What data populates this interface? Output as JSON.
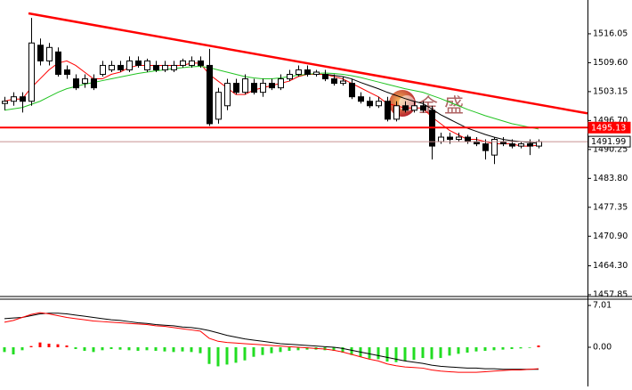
{
  "chart_data": {
    "type": "candlestick",
    "ylim": [
      1457.85,
      1521.6
    ],
    "yticks": [
      1516.05,
      {
        "value": 1509.6,
        "label": "1509.60"
      },
      1503.15,
      {
        "value": 1496.7,
        "label": "1496.70"
      },
      1490.25,
      {
        "value": 1483.8,
        "label": "1483.80"
      },
      1477.35,
      {
        "value": 1470.9,
        "label": "1470.90"
      },
      {
        "value": 1464.3,
        "label": "1464.30"
      },
      1457.85
    ],
    "candle_color": "#000000",
    "ohlc": [
      [
        1500.5,
        1502,
        1499,
        1501
      ],
      [
        1501,
        1503,
        1500,
        1502
      ],
      [
        1502,
        1503,
        1498.5,
        1501
      ],
      [
        1501,
        1519.6,
        1500,
        1514
      ],
      [
        1513.5,
        1515,
        1509,
        1510
      ],
      [
        1510,
        1514,
        1509,
        1513
      ],
      [
        1512,
        1513,
        1506.5,
        1507
      ],
      [
        1508,
        1509,
        1506,
        1507
      ],
      [
        1506,
        1507,
        1503.5,
        1504
      ],
      [
        1505,
        1507,
        1504,
        1506
      ],
      [
        1506,
        1507,
        1503.5,
        1504
      ],
      [
        1507,
        1510,
        1506.5,
        1509
      ],
      [
        1508,
        1510,
        1507.5,
        1509
      ],
      [
        1509,
        1510,
        1507.5,
        1508
      ],
      [
        1508,
        1511,
        1507.5,
        1510
      ],
      [
        1510,
        1511,
        1508.5,
        1509
      ],
      [
        1508,
        1510.5,
        1507.5,
        1510
      ],
      [
        1509,
        1510,
        1507.5,
        1508
      ],
      [
        1508,
        1510,
        1507.5,
        1509
      ],
      [
        1508,
        1510,
        1507.5,
        1509
      ],
      [
        1509,
        1510.5,
        1508.5,
        1510
      ],
      [
        1509,
        1511,
        1508.5,
        1510
      ],
      [
        1510,
        1511,
        1508.5,
        1509
      ],
      [
        1509,
        1512.7,
        1495.5,
        1496
      ],
      [
        1497,
        1504,
        1496,
        1503
      ],
      [
        1500,
        1506,
        1499,
        1505
      ],
      [
        1505,
        1506,
        1502.5,
        1503
      ],
      [
        1503,
        1507,
        1502.5,
        1506
      ],
      [
        1505,
        1506,
        1502.5,
        1503
      ],
      [
        1503,
        1506,
        1502,
        1505
      ],
      [
        1505,
        1506,
        1503.5,
        1504
      ],
      [
        1504,
        1507,
        1503.5,
        1506
      ],
      [
        1506,
        1508,
        1505.5,
        1507
      ],
      [
        1507,
        1509,
        1506.5,
        1508
      ],
      [
        1508,
        1509,
        1506.5,
        1507
      ],
      [
        1507,
        1508,
        1506.5,
        1507.5
      ],
      [
        1507,
        1508,
        1505.5,
        1506
      ],
      [
        1506,
        1507,
        1504.5,
        1505
      ],
      [
        1505,
        1506.5,
        1504.5,
        1505.5
      ],
      [
        1505,
        1506,
        1501.5,
        1502
      ],
      [
        1502,
        1503,
        1500.5,
        1501
      ],
      [
        1501,
        1502,
        1499.5,
        1500
      ],
      [
        1500,
        1502,
        1499.5,
        1501
      ],
      [
        1501,
        1502,
        1496.5,
        1497
      ],
      [
        1497,
        1501,
        1496.5,
        1500
      ],
      [
        1500,
        1501,
        1498.5,
        1499
      ],
      [
        1499,
        1501,
        1498.5,
        1500
      ],
      [
        1500,
        1501,
        1498.5,
        1499
      ],
      [
        1499,
        1500,
        1488,
        1491
      ],
      [
        1492,
        1494,
        1491.5,
        1493
      ],
      [
        1493,
        1494,
        1491.5,
        1492.5
      ],
      [
        1492.5,
        1494,
        1492,
        1493
      ],
      [
        1493,
        1493.5,
        1491.5,
        1492
      ],
      [
        1492,
        1493,
        1491,
        1491.5
      ],
      [
        1491.5,
        1492.5,
        1488,
        1490
      ],
      [
        1489,
        1493,
        1487,
        1492.5
      ],
      [
        1492,
        1493,
        1491,
        1491.5
      ],
      [
        1491.5,
        1492.5,
        1490.5,
        1491
      ],
      [
        1491,
        1492,
        1490.5,
        1491.5
      ],
      [
        1491.5,
        1492.5,
        1489,
        1491
      ],
      [
        1491,
        1492.5,
        1490.5,
        1491.99
      ]
    ],
    "series": [
      {
        "color": "#ff0000",
        "values": [
          1501,
          1501.5,
          1501.5,
          1504,
          1506,
          1508,
          1509.5,
          1510,
          1509,
          1507.5,
          1506,
          1506,
          1507,
          1507.5,
          1508.5,
          1509,
          1509,
          1509,
          1509,
          1509,
          1509,
          1509.5,
          1509.5,
          1507,
          1505.5,
          1504,
          1502.5,
          1502.5,
          1503.5,
          1504,
          1504.5,
          1505,
          1505.5,
          1506.5,
          1507,
          1507,
          1507,
          1506.5,
          1506,
          1505,
          1504,
          1503,
          1502,
          1500.5,
          1500,
          1499.5,
          1499.5,
          1499.5,
          1497.5,
          1496,
          1494.5,
          1493.5,
          1492.5,
          1492.5,
          1492,
          1491.5,
          1491.5,
          1491.5,
          1491,
          1491,
          1491.2
        ]
      },
      {
        "color": "#22c422",
        "values": [
          1499,
          1499.3,
          1499.6,
          1500.3,
          1501,
          1502,
          1503,
          1503.8,
          1504.3,
          1504.8,
          1505.2,
          1505.6,
          1506,
          1506.4,
          1506.8,
          1507.2,
          1507.5,
          1507.8,
          1508,
          1508.3,
          1508.5,
          1508.7,
          1508.8,
          1508.5,
          1508,
          1507.5,
          1507,
          1506.5,
          1506.2,
          1506,
          1506,
          1506.2,
          1506.5,
          1506.8,
          1507,
          1507.2,
          1507.3,
          1507.2,
          1507,
          1506.7,
          1506.3,
          1505.8,
          1505.3,
          1504.8,
          1504.3,
          1503.8,
          1503.4,
          1503,
          1502.3,
          1501.6,
          1500.8,
          1500,
          1499.2,
          1498.5,
          1497.8,
          1497.2,
          1496.6,
          1496,
          1495.6,
          1495.2,
          1494.8
        ]
      },
      {
        "color": "#000000",
        "values": [
          null,
          null,
          null,
          null,
          null,
          null,
          null,
          null,
          null,
          null,
          null,
          null,
          null,
          null,
          null,
          null,
          null,
          null,
          null,
          null,
          null,
          null,
          null,
          null,
          null,
          null,
          null,
          null,
          null,
          null,
          null,
          null,
          null,
          null,
          null,
          null,
          1507,
          1506.8,
          1506.5,
          1506,
          1505.2,
          1504.5,
          1503.8,
          1503,
          1502.3,
          1501.6,
          1501,
          1500.5,
          1499.3,
          1498,
          1497,
          1496,
          1495,
          1494.3,
          1493.6,
          1493,
          1492.5,
          1492.2,
          1492,
          1491.8,
          1491.6
        ]
      }
    ],
    "trendline": {
      "color": "#ff0000",
      "start": [
        2.7,
        1520.6
      ],
      "end": [
        65.5,
        1498.3
      ]
    },
    "levels": [
      {
        "value": 1495.13,
        "color": "#ff0000"
      },
      {
        "value": 1491.99,
        "color": "#c89090"
      }
    ],
    "watermark": "金 盛",
    "macd": {
      "ylim": [
        -6.57,
        8.06
      ],
      "yticks": [
        7.01,
        {
          "value": 0,
          "label": "0.00"
        }
      ],
      "up_color": "#ff0000",
      "down_color": "#22dd22",
      "histogram": [
        -0.8,
        -1.2,
        -0.5,
        0.2,
        0.8,
        0.6,
        0.5,
        0.3,
        -0.3,
        -0.6,
        -0.8,
        -0.5,
        -0.3,
        -0.4,
        -0.5,
        -0.6,
        -0.5,
        -0.6,
        -0.7,
        -0.8,
        -0.7,
        -0.8,
        -1.0,
        -2.8,
        -3.2,
        -2.9,
        -2.6,
        -2.2,
        -1.6,
        -1.3,
        -1.0,
        -0.8,
        -0.6,
        -0.5,
        -0.4,
        -0.4,
        -0.5,
        -0.6,
        -0.9,
        -1.3,
        -1.6,
        -1.9,
        -2.0,
        -2.4,
        -2.5,
        -2.3,
        -2.1,
        -1.8,
        -2.0,
        -1.8,
        -1.4,
        -1.1,
        -0.9,
        -0.7,
        -0.6,
        -0.5,
        -0.4,
        -0.3,
        -0.2,
        -0.1,
        0.3
      ],
      "series": [
        {
          "color": "#000000",
          "values": [
            4.8,
            4.9,
            5.0,
            5.3,
            5.6,
            5.7,
            5.7,
            5.6,
            5.4,
            5.2,
            5.0,
            4.8,
            4.6,
            4.5,
            4.3,
            4.1,
            4.0,
            3.8,
            3.7,
            3.6,
            3.4,
            3.3,
            3.1,
            2.8,
            2.4,
            2.0,
            1.7,
            1.4,
            1.2,
            1.0,
            0.8,
            0.6,
            0.5,
            0.4,
            0.3,
            0.2,
            0.1,
            0.0,
            -0.2,
            -0.5,
            -0.8,
            -1.1,
            -1.4,
            -1.7,
            -2.0,
            -2.3,
            -2.5,
            -2.7,
            -3.0,
            -3.2,
            -3.3,
            -3.4,
            -3.5,
            -3.5,
            -3.6,
            -3.6,
            -3.7,
            -3.7,
            -3.7,
            -3.7,
            -3.7
          ]
        },
        {
          "color": "#ff0000",
          "values": [
            4.2,
            4.5,
            5.0,
            5.5,
            5.8,
            5.6,
            5.3,
            5.0,
            4.8,
            4.6,
            4.4,
            4.3,
            4.2,
            4.1,
            4.0,
            3.9,
            3.8,
            3.6,
            3.5,
            3.3,
            3.1,
            2.9,
            2.7,
            1.5,
            1.0,
            0.8,
            0.7,
            0.6,
            0.5,
            0.4,
            0.3,
            0.2,
            0.1,
            0.0,
            -0.1,
            -0.2,
            -0.3,
            -0.5,
            -0.8,
            -1.2,
            -1.6,
            -2.0,
            -2.3,
            -2.8,
            -3.1,
            -3.3,
            -3.4,
            -3.5,
            -3.8,
            -4.0,
            -4.1,
            -4.2,
            -4.2,
            -4.2,
            -4.1,
            -4.0,
            -3.9,
            -3.8,
            -3.8,
            -3.7,
            -3.6
          ]
        }
      ]
    }
  }
}
